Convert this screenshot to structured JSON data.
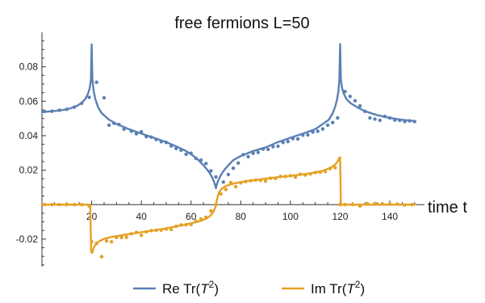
{
  "chart_data": {
    "type": "line",
    "title": "free fermions L=50",
    "xlabel": "time t",
    "ylabel": "",
    "xlim": [
      0,
      152
    ],
    "ylim": [
      -0.036,
      0.1
    ],
    "x_ticks": [
      20,
      40,
      60,
      80,
      100,
      120,
      140
    ],
    "y_ticks": [
      -0.02,
      0.02,
      0.04,
      0.06,
      0.08
    ],
    "x_tick_labels": [
      "20",
      "40",
      "60",
      "80",
      "100",
      "120",
      "140"
    ],
    "y_tick_labels": [
      "-0.02",
      "0.02",
      "0.04",
      "0.06",
      "0.08"
    ],
    "grid": false,
    "legend_position": "bottom",
    "series": [
      {
        "name": "Re Tr(T2)",
        "legend_base": "Re Tr(",
        "legend_italic": "T",
        "legend_sup": "2",
        "legend_close": ")",
        "color": "#5b80b4",
        "style": "line",
        "x": [
          0,
          4,
          8,
          11,
          14,
          16,
          17.5,
          18.5,
          19.2,
          19.7,
          20,
          20.3,
          20.8,
          21.5,
          22.5,
          24,
          27,
          30,
          35,
          40,
          45,
          50,
          55,
          58,
          61,
          63,
          65,
          66.5,
          67.5,
          68.3,
          68.8,
          69.2,
          69.6,
          70,
          70.4,
          70.8,
          71.2,
          71.7,
          72.5,
          73.5,
          75,
          77,
          80,
          85,
          90,
          95,
          100,
          105,
          110,
          113,
          115.5,
          117,
          118,
          118.8,
          119.3,
          119.7,
          120,
          120.3,
          120.8,
          121.5,
          122.5,
          124,
          127,
          130,
          135,
          140,
          145,
          150
        ],
        "y": [
          0.0537,
          0.0542,
          0.0548,
          0.0557,
          0.0572,
          0.0591,
          0.0614,
          0.0643,
          0.0675,
          0.0725,
          0.093,
          0.0725,
          0.0658,
          0.0612,
          0.0568,
          0.0531,
          0.0493,
          0.0468,
          0.0438,
          0.0412,
          0.0388,
          0.0363,
          0.0332,
          0.0311,
          0.0282,
          0.0258,
          0.0228,
          0.0203,
          0.0183,
          0.0163,
          0.0148,
          0.0135,
          0.0118,
          0.0095,
          0.0118,
          0.0135,
          0.0148,
          0.0163,
          0.0183,
          0.0203,
          0.0228,
          0.0258,
          0.0282,
          0.0311,
          0.0332,
          0.0363,
          0.0388,
          0.0412,
          0.0438,
          0.0468,
          0.0493,
          0.0531,
          0.0568,
          0.0612,
          0.0658,
          0.0725,
          0.0932,
          0.0725,
          0.0675,
          0.0643,
          0.0614,
          0.0591,
          0.0564,
          0.0542,
          0.0519,
          0.0503,
          0.0492,
          0.0485
        ]
      },
      {
        "name": "Re Tr(T2) samples",
        "color": "#5b80b4",
        "style": "points",
        "x": [
          1,
          4,
          7,
          10,
          13,
          16,
          19,
          22,
          25,
          27,
          29,
          31,
          33,
          36,
          38,
          40,
          42,
          44,
          46,
          48,
          50,
          52,
          54,
          56,
          58,
          60,
          62,
          64,
          66,
          68,
          70,
          73,
          75,
          77,
          79,
          81,
          83,
          85,
          87,
          89,
          91,
          93,
          95,
          97,
          99,
          101,
          103,
          105,
          107,
          109,
          111,
          113,
          115,
          117,
          119,
          122,
          124,
          126,
          128,
          130,
          132,
          134,
          136,
          138,
          140,
          142,
          144,
          146,
          148,
          150
        ],
        "y": [
          0.0541,
          0.0542,
          0.0548,
          0.0553,
          0.0566,
          0.0588,
          0.0623,
          0.071,
          0.062,
          0.0461,
          0.0472,
          0.0465,
          0.0438,
          0.0426,
          0.0411,
          0.0423,
          0.0394,
          0.0392,
          0.0378,
          0.0365,
          0.0361,
          0.0341,
          0.0326,
          0.0316,
          0.0292,
          0.0298,
          0.0268,
          0.0258,
          0.0238,
          0.0196,
          0.0161,
          0.0131,
          0.0175,
          0.0211,
          0.0241,
          0.029,
          0.0278,
          0.0298,
          0.0303,
          0.0322,
          0.0321,
          0.0336,
          0.0339,
          0.0361,
          0.0366,
          0.0383,
          0.0381,
          0.0403,
          0.0405,
          0.0421,
          0.0426,
          0.0439,
          0.0461,
          0.0476,
          0.0503,
          0.0656,
          0.0628,
          0.0603,
          0.0573,
          0.0541,
          0.0503,
          0.0496,
          0.0489,
          0.0512,
          0.0503,
          0.0491,
          0.0489,
          0.0482,
          0.0486,
          0.0482
        ]
      },
      {
        "name": "Im Tr(T2)",
        "legend_base": "Im Tr(",
        "legend_italic": "T",
        "legend_sup": "2",
        "legend_close": ")",
        "color": "#e5a125",
        "style": "line",
        "x": [
          0,
          19.4,
          19.8,
          20.2,
          20.6,
          21,
          21.8,
          23,
          25,
          28,
          32,
          37,
          42,
          47,
          52,
          57,
          61,
          64,
          66,
          67.5,
          68.5,
          69.2,
          69.7,
          70,
          70.3,
          70.8,
          71.5,
          72.5,
          74,
          76,
          79,
          83,
          88,
          93,
          98,
          103,
          108,
          113,
          116,
          118,
          119.2,
          119.7,
          120,
          120.3,
          120.8,
          121.5,
          122.5,
          150
        ],
        "y": [
          0.0,
          0.0,
          -0.0275,
          -0.028,
          -0.0262,
          -0.0245,
          -0.0228,
          -0.0213,
          -0.0198,
          -0.0188,
          -0.0178,
          -0.0167,
          -0.0156,
          -0.0145,
          -0.0132,
          -0.0118,
          -0.0105,
          -0.0094,
          -0.0082,
          -0.0068,
          -0.0052,
          -0.0036,
          -0.0019,
          0.0,
          0.0019,
          0.0052,
          0.0077,
          0.0094,
          0.0108,
          0.0118,
          0.0128,
          0.0138,
          0.0147,
          0.0156,
          0.0164,
          0.0172,
          0.0182,
          0.0196,
          0.0213,
          0.0232,
          0.0255,
          0.0272,
          0.0275,
          0.0,
          0.0,
          0.0,
          0.0,
          0.0
        ]
      },
      {
        "name": "Im Tr(T2) samples",
        "color": "#e5a125",
        "style": "points",
        "x": [
          1,
          4,
          7,
          10,
          13,
          16,
          19,
          20,
          22,
          24,
          26,
          28,
          30,
          32,
          34,
          36,
          38,
          40,
          42,
          44,
          46,
          48,
          50,
          52,
          54,
          56,
          58,
          60,
          62,
          64,
          66,
          68,
          70,
          72,
          74,
          76,
          78,
          80,
          82,
          84,
          86,
          88,
          90,
          92,
          94,
          96,
          98,
          100,
          102,
          104,
          106,
          108,
          110,
          112,
          114,
          116,
          118,
          120,
          122,
          125,
          128,
          131,
          134,
          137,
          140,
          143,
          146,
          149
        ],
        "y": [
          0.0,
          0.0,
          0.0,
          0.0,
          0.0,
          0.0,
          -0.0008,
          -0.0215,
          -0.0225,
          -0.0302,
          -0.0211,
          -0.0216,
          -0.0191,
          -0.0191,
          -0.0189,
          -0.0169,
          -0.0161,
          -0.0178,
          -0.0158,
          -0.0151,
          -0.0149,
          -0.0148,
          -0.0142,
          -0.0144,
          -0.0126,
          -0.0118,
          -0.0117,
          -0.0116,
          -0.0096,
          -0.0084,
          -0.0073,
          -0.0036,
          0.0,
          0.0062,
          0.0088,
          0.0128,
          0.0104,
          0.0126,
          0.0134,
          0.0138,
          0.0142,
          0.0141,
          0.0136,
          0.0153,
          0.0152,
          0.0164,
          0.0163,
          0.0168,
          0.0159,
          0.0176,
          0.0172,
          0.0178,
          0.0186,
          0.0188,
          0.0192,
          0.0209,
          0.0214,
          0.0,
          0.0,
          0.0,
          -0.0008,
          0.0006,
          0.0006,
          0.0005,
          0.0003,
          0.0003,
          -0.0002,
          0.0
        ]
      }
    ]
  }
}
